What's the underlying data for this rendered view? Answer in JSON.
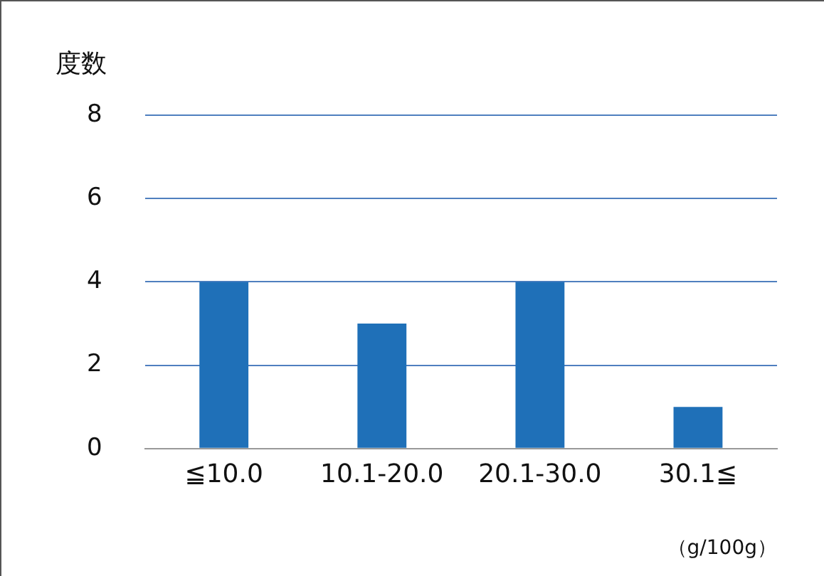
{
  "chart_data": {
    "type": "bar",
    "ylabel": "度数",
    "xlabel": "（g/100g）",
    "categories": [
      "≦10.0",
      "10.1-20.0",
      "20.1-30.0",
      "30.1≦"
    ],
    "values": [
      4,
      3,
      4,
      1
    ],
    "color": "#1f70b8",
    "ylim": [
      0,
      8
    ],
    "yticks": [
      0,
      2,
      4,
      6,
      8
    ],
    "grid": "y",
    "legend": false
  }
}
